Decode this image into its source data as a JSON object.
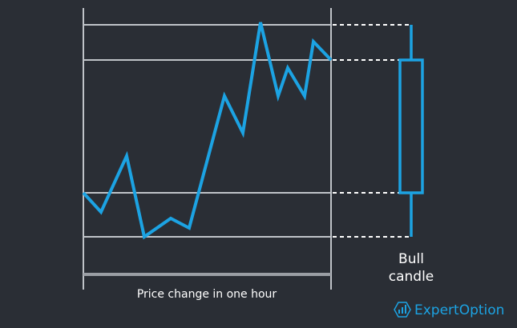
{
  "caption": "Price change in one hour",
  "candle_label": [
    "Bull",
    "candle"
  ],
  "logo": "ExpertOption"
}
